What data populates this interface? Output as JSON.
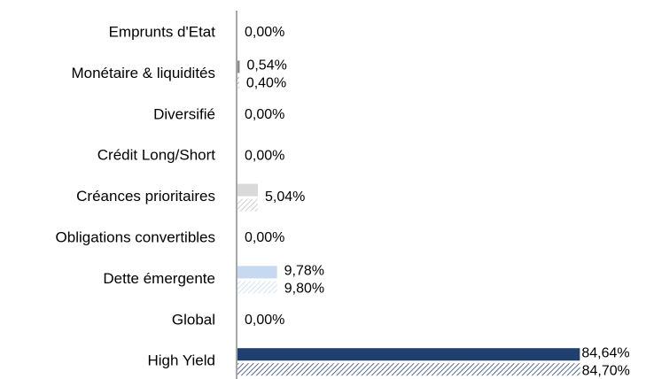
{
  "chart_data": {
    "type": "hbar",
    "categories": [
      "Emprunts d'Etat",
      "Monétaire & liquidités",
      "Diversifié",
      "Crédit Long/Short",
      "Créances prioritaires",
      "Obligations convertibles",
      "Dette émergente",
      "Global",
      "High Yield"
    ],
    "xlim": [
      0,
      85
    ],
    "series": [
      {
        "values": [
          0,
          0.54,
          0,
          0,
          5.04,
          0,
          9.78,
          0,
          84.64
        ],
        "value_labels": [
          "0,00%",
          "0,54%",
          "0,00%",
          "0,00%",
          "5,04%",
          "0,00%",
          "9,78%",
          "0,00%",
          "84,64%"
        ],
        "colors": [
          "#8c8c8c",
          "#8c8c8c",
          "#8c8c8c",
          "#8c8c8c",
          "#d9d9d9",
          "#8c8c8c",
          "#c6d9f1",
          "#8c8c8c",
          "#1f3f6e"
        ],
        "hatched": false
      },
      {
        "values": [
          0,
          0.4,
          0,
          0,
          5.0,
          0,
          9.8,
          0,
          84.7
        ],
        "value_labels": [
          null,
          "0,40%",
          null,
          null,
          null,
          null,
          "9,80%",
          null,
          "84,70%"
        ],
        "colors": [
          "#8c8c8c",
          "#8c8c8c",
          "#8c8c8c",
          "#8c8c8c",
          "#bfbfbf",
          "#8c8c8c",
          "#c6d9f1",
          "#8c8c8c",
          "#1f3f6e"
        ],
        "hatched": true
      }
    ]
  }
}
